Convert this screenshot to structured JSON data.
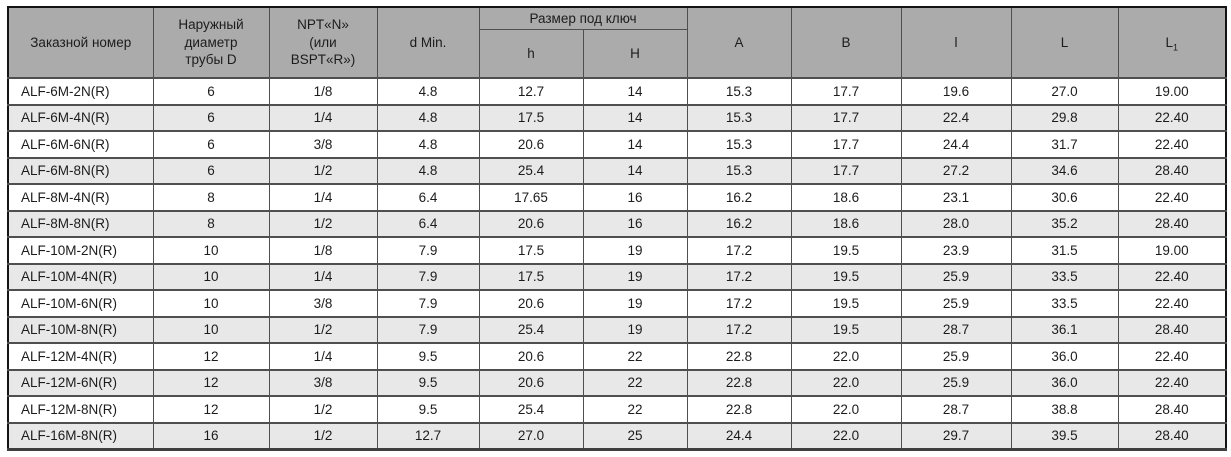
{
  "colors": {
    "header_bg": "#ababab",
    "row_bg": "#ffffff",
    "row_alt_bg": "#e8e8e8",
    "grid_line": "#4f4f4f",
    "outer_border": "#141414",
    "text": "#1c1c1c"
  },
  "table": {
    "headers": {
      "order_number": "Заказной номер",
      "outer_diameter": "Наружный\nдиаметр\nтрубы D",
      "npt_bspt": "NPT«N»\n(или\nBSPT«R»)",
      "d_min": "d Min.",
      "wrench_size_group": "Размер под ключ",
      "h_lower": "h",
      "h_upper": "H",
      "a": "A",
      "b": "B",
      "l_lower": "l",
      "l_upper": "L",
      "l1_base": "L",
      "l1_sub": "1"
    },
    "rows": [
      [
        "ALF-6M-2N(R)",
        "6",
        "1/8",
        "4.8",
        "12.7",
        "14",
        "15.3",
        "17.7",
        "19.6",
        "27.0",
        "19.00"
      ],
      [
        "ALF-6M-4N(R)",
        "6",
        "1/4",
        "4.8",
        "17.5",
        "14",
        "15.3",
        "17.7",
        "22.4",
        "29.8",
        "22.40"
      ],
      [
        "ALF-6M-6N(R)",
        "6",
        "3/8",
        "4.8",
        "20.6",
        "14",
        "15.3",
        "17.7",
        "24.4",
        "31.7",
        "22.40"
      ],
      [
        "ALF-6M-8N(R)",
        "6",
        "1/2",
        "4.8",
        "25.4",
        "14",
        "15.3",
        "17.7",
        "27.2",
        "34.6",
        "28.40"
      ],
      [
        "ALF-8M-4N(R)",
        "8",
        "1/4",
        "6.4",
        "17.65",
        "16",
        "16.2",
        "18.6",
        "23.1",
        "30.6",
        "22.40"
      ],
      [
        "ALF-8M-8N(R)",
        "8",
        "1/2",
        "6.4",
        "20.6",
        "16",
        "16.2",
        "18.6",
        "28.0",
        "35.2",
        "28.40"
      ],
      [
        "ALF-10M-2N(R)",
        "10",
        "1/8",
        "7.9",
        "17.5",
        "19",
        "17.2",
        "19.5",
        "23.9",
        "31.5",
        "19.00"
      ],
      [
        "ALF-10M-4N(R)",
        "10",
        "1/4",
        "7.9",
        "17.5",
        "19",
        "17.2",
        "19.5",
        "25.9",
        "33.5",
        "22.40"
      ],
      [
        "ALF-10M-6N(R)",
        "10",
        "3/8",
        "7.9",
        "20.6",
        "19",
        "17.2",
        "19.5",
        "25.9",
        "33.5",
        "22.40"
      ],
      [
        "ALF-10M-8N(R)",
        "10",
        "1/2",
        "7.9",
        "25.4",
        "19",
        "17.2",
        "19.5",
        "28.7",
        "36.1",
        "28.40"
      ],
      [
        "ALF-12M-4N(R)",
        "12",
        "1/4",
        "9.5",
        "20.6",
        "22",
        "22.8",
        "22.0",
        "25.9",
        "36.0",
        "22.40"
      ],
      [
        "ALF-12M-6N(R)",
        "12",
        "3/8",
        "9.5",
        "20.6",
        "22",
        "22.8",
        "22.0",
        "25.9",
        "36.0",
        "22.40"
      ],
      [
        "ALF-12M-8N(R)",
        "12",
        "1/2",
        "9.5",
        "25.4",
        "22",
        "22.8",
        "22.0",
        "28.7",
        "38.8",
        "28.40"
      ],
      [
        "ALF-16M-8N(R)",
        "16",
        "1/2",
        "12.7",
        "27.0",
        "25",
        "24.4",
        "22.0",
        "29.7",
        "39.5",
        "28.40"
      ]
    ]
  }
}
